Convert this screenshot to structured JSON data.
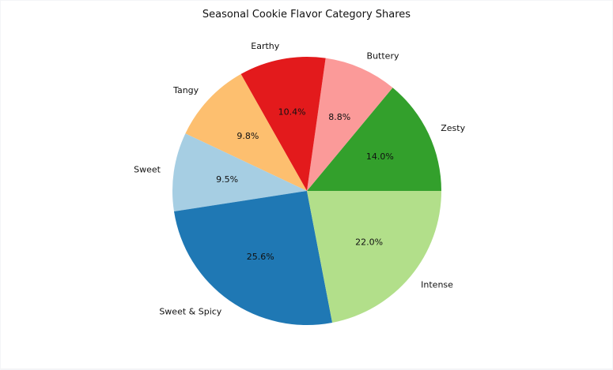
{
  "chart_data": {
    "type": "pie",
    "title": "Seasonal Cookie Flavor Category Shares",
    "start_angle_deg": 0,
    "direction": "counterclockwise",
    "slices": [
      {
        "label": "Zesty",
        "value": 14.0,
        "pct_label": "14.0%",
        "color": "#33a02c"
      },
      {
        "label": "Buttery",
        "value": 8.8,
        "pct_label": "8.8%",
        "color": "#fb9a99"
      },
      {
        "label": "Earthy",
        "value": 10.4,
        "pct_label": "10.4%",
        "color": "#e31a1c"
      },
      {
        "label": "Tangy",
        "value": 9.8,
        "pct_label": "9.8%",
        "color": "#fdbf6f"
      },
      {
        "label": "Sweet",
        "value": 9.5,
        "pct_label": "9.5%",
        "color": "#a6cee3"
      },
      {
        "label": "Sweet & Spicy",
        "value": 25.6,
        "pct_label": "25.6%",
        "color": "#1f78b4"
      },
      {
        "label": "Intense",
        "value": 22.0,
        "pct_label": "22.0%",
        "color": "#b2df8a"
      }
    ]
  }
}
